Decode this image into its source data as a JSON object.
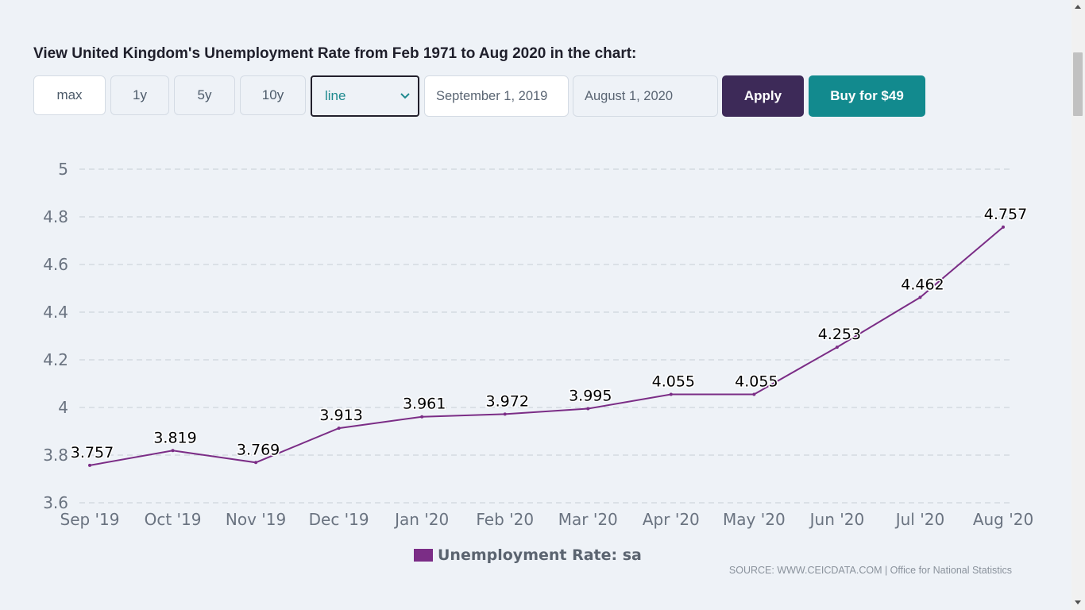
{
  "page": {
    "heading": "View United Kingdom's Unemployment Rate from Feb 1971 to Aug 2020 in the chart:"
  },
  "controls": {
    "ranges": [
      "max",
      "1y",
      "5y",
      "10y"
    ],
    "chart_type": "line",
    "date_from": "September 1, 2019",
    "date_to": "August 1, 2020",
    "apply_label": "Apply",
    "buy_label": "Buy for $49"
  },
  "footer": {
    "source": "SOURCE: WWW.CEICDATA.COM | Office for National Statistics"
  },
  "colors": {
    "series": "#7b2d86",
    "apply": "#3d2a58",
    "buy": "#128a8e"
  },
  "chart_data": {
    "type": "line",
    "categories": [
      "Sep '19",
      "Oct '19",
      "Nov '19",
      "Dec '19",
      "Jan '20",
      "Feb '20",
      "Mar '20",
      "Apr '20",
      "May '20",
      "Jun '20",
      "Jul '20",
      "Aug '20"
    ],
    "series": [
      {
        "name": "Unemployment Rate: sa",
        "values": [
          3.757,
          3.819,
          3.769,
          3.913,
          3.961,
          3.972,
          3.995,
          4.055,
          4.055,
          4.253,
          4.462,
          4.757
        ],
        "labels": [
          "3.757",
          "3.819",
          "3.769",
          "3.913",
          "3.961",
          "3.972",
          "3.995",
          "4.055",
          "4.055",
          "4.253",
          "4.462",
          "4.757"
        ]
      }
    ],
    "y_ticks": [
      "3.6",
      "3.8",
      "4",
      "4.2",
      "4.4",
      "4.6",
      "4.8",
      "5"
    ],
    "ylim": [
      3.6,
      5
    ],
    "grid": true,
    "legend_position": "bottom-center"
  }
}
